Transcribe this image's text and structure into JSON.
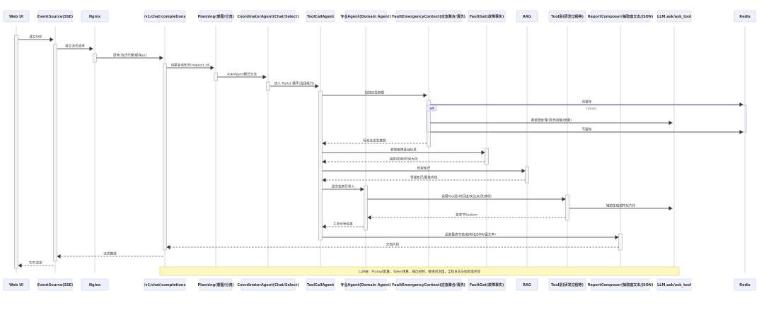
{
  "participants": [
    "Web UI",
    "EventSource(SSE)",
    "Nginx",
    "/v1/chat/completions",
    "Planning(意图/分流)",
    "CoordinatorAgent(Chat/Select)",
    "ToolCallAgent",
    "专业Agent(Domain Agent)",
    "FaultEmergencyContext(应急聚合/清洗)",
    "FaultGet(故障事实)",
    "RAG",
    "Tool层(研发过程等)",
    "ReportComposer(抽取面文本/JSON)",
    "LLM.ask/ask_tool",
    "Redis"
  ],
  "messages": [
    {
      "from": 0,
      "to": 1,
      "text": "建立SSE",
      "dashed": false
    },
    {
      "from": 1,
      "to": 2,
      "text": "建立流式请求",
      "dashed": false
    },
    {
      "from": 2,
      "to": 3,
      "text": "透传(流式代理/缓存yy)",
      "dashed": false
    },
    {
      "from": 3,
      "to": 4,
      "text": "创建会话任务(request_id)",
      "dashed": false
    },
    {
      "from": 4,
      "to": 5,
      "text": "Ask/Agent模式分流",
      "dashed": false
    },
    {
      "from": 5,
      "to": 6,
      "text": "进入 ReAct 循环(选择能力)",
      "dashed": false
    },
    {
      "from": 6,
      "to": 8,
      "text": "拉取应急数据",
      "dashed": false
    },
    {
      "from": 8,
      "to": 14,
      "text": "读缓存",
      "dashed": false
    },
    {
      "from": 8,
      "to": 13,
      "text": "数据预处理(清洗/脱敏/摘要)",
      "dashed": false
    },
    {
      "from": 8,
      "to": 14,
      "text": "写缓存",
      "dashed": false
    },
    {
      "from": 8,
      "to": 6,
      "text": "标准化应急数据",
      "dashed": true
    },
    {
      "from": 6,
      "to": 9,
      "text": "获取故障基础信息",
      "dashed": false
    },
    {
      "from": 9,
      "to": 6,
      "text": "描述/影响/时间大段",
      "dashed": true
    },
    {
      "from": 6,
      "to": 10,
      "text": "检索知识",
      "dashed": false
    },
    {
      "from": 10,
      "to": 6,
      "text": "领域知识/最佳实践",
      "dashed": true
    },
    {
      "from": 6,
      "to": 7,
      "text": "提交检索引导入",
      "dashed": false
    },
    {
      "from": 7,
      "to": 11,
      "text": "调用Tool层(时间线/关注点/改进项)",
      "dashed": false
    },
    {
      "from": 11,
      "to": 13,
      "text": "辅助生成结构化片段",
      "dashed": false
    },
    {
      "from": 11,
      "to": 7,
      "text": "各章节Section",
      "dashed": true
    },
    {
      "from": 7,
      "to": 6,
      "text": "汇总分析结果",
      "dashed": true
    },
    {
      "from": 6,
      "to": 12,
      "text": "组装最终文档(结构化JSON/富文本)",
      "dashed": false
    },
    {
      "from": 12,
      "to": 3,
      "text": "文档片段",
      "dashed": true
    },
    {
      "from": 3,
      "to": 1,
      "text": "流式推送",
      "dashed": true
    },
    {
      "from": 1,
      "to": 0,
      "text": "实时渲染",
      "dashed": true
    }
  ],
  "alt_block": {
    "label": "alt",
    "condition": "[miss]"
  },
  "note": "LLM层：Prompt配置，Token预算，输出控制，敏感词治理，全程日志与指标埋点等"
}
